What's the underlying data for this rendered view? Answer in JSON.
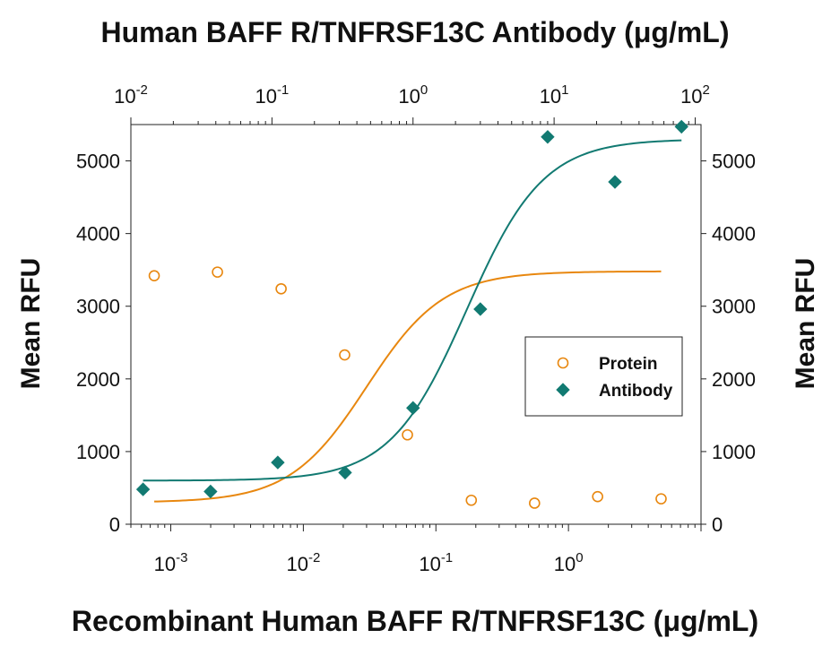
{
  "chart_data": {
    "type": "scatter",
    "top_title": "Human BAFF R/TNFRSF13C Antibody (μg/mL)",
    "bottom_title": "Recombinant Human BAFF R/TNFRSF13C (μg/mL)",
    "ylabel_left": "Mean RFU",
    "ylabel_right": "Mean RFU",
    "y_axis": {
      "min": 0,
      "max": 5500,
      "ticks": [
        0,
        1000,
        2000,
        3000,
        4000,
        5000
      ]
    },
    "x_bottom": {
      "scale": "log",
      "min": 0.0005,
      "max": 10,
      "ticks": [
        {
          "value": 0.001,
          "base": "10",
          "exp": "-3"
        },
        {
          "value": 0.01,
          "base": "10",
          "exp": "-2"
        },
        {
          "value": 0.1,
          "base": "10",
          "exp": "-1"
        },
        {
          "value": 1,
          "base": "10",
          "exp": "0"
        }
      ]
    },
    "x_top": {
      "scale": "log",
      "min": 0.01,
      "max": 110,
      "ticks": [
        {
          "value": 0.01,
          "base": "10",
          "exp": "-2"
        },
        {
          "value": 0.1,
          "base": "10",
          "exp": "-1"
        },
        {
          "value": 1,
          "base": "10",
          "exp": "0"
        },
        {
          "value": 10,
          "base": "10",
          "exp": "1"
        },
        {
          "value": 100,
          "base": "10",
          "exp": "2"
        }
      ]
    },
    "series": [
      {
        "name": "Protein",
        "axis": "bottom",
        "marker": "open-circle",
        "color": "#e8870f",
        "x": [
          0.00075,
          0.00225,
          0.0068,
          0.0205,
          0.061,
          0.185,
          0.555,
          1.66,
          5.0
        ],
        "y": [
          3420,
          3470,
          3240,
          2330,
          1230,
          330,
          290,
          380,
          350
        ],
        "fit": {
          "top": 3480,
          "bottom": 300,
          "ec50": 0.03,
          "hill": 1.5
        }
      },
      {
        "name": "Antibody",
        "axis": "top",
        "marker": "filled-diamond",
        "color": "#127a72",
        "x": [
          0.0122,
          0.0367,
          0.11,
          0.33,
          1.0,
          3.0,
          9.0,
          27.0,
          80.0
        ],
        "y": [
          480,
          450,
          850,
          710,
          1600,
          2960,
          5330,
          4710,
          5470
        ],
        "fit": {
          "top": 5300,
          "bottom": 600,
          "ec50": 2.4,
          "hill": 1.6
        }
      }
    ],
    "legend": {
      "position": "center-right",
      "entries": [
        {
          "label": "Protein",
          "marker": "open-circle"
        },
        {
          "label": "Antibody",
          "marker": "filled-diamond"
        }
      ]
    }
  }
}
